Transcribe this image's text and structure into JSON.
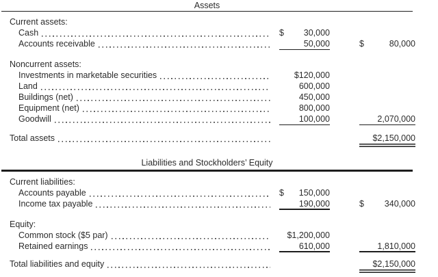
{
  "document": {
    "kind": "balance-sheet",
    "colors": {
      "background": "#ffffff",
      "text": "#2b2b2b",
      "rule": "#1d1d1d",
      "leader_dots": "#3f3f3f"
    },
    "sections": [
      {
        "title": "Assets",
        "rows": [
          {
            "label": "Current assets:",
            "indent": 0
          },
          {
            "label": "Cash",
            "indent": 1,
            "leader": true,
            "col1": {
              "dollar": "$",
              "value": "30,000"
            }
          },
          {
            "label": "Accounts receivable",
            "indent": 1,
            "leader": true,
            "col1": {
              "value": "50,000",
              "underline": "single"
            },
            "col2": {
              "dollar": "$",
              "value": "80,000"
            }
          },
          {
            "label": "Noncurrent assets:",
            "indent": 0,
            "gap": 14
          },
          {
            "label": "Investments in marketable securities",
            "indent": 1,
            "leader": true,
            "col1": {
              "value": "$120,000"
            }
          },
          {
            "label": "Land",
            "indent": 1,
            "leader": true,
            "col1": {
              "value": "600,000"
            }
          },
          {
            "label": "Buildings (net)",
            "indent": 1,
            "leader": true,
            "col1": {
              "value": "450,000"
            }
          },
          {
            "label": "Equipment (net)",
            "indent": 1,
            "leader": true,
            "col1": {
              "value": "800,000"
            }
          },
          {
            "label": "Goodwill",
            "indent": 1,
            "leader": true,
            "col1": {
              "value": "100,000",
              "underline": "single"
            },
            "col2": {
              "value": "2,070,000",
              "underline": "single"
            }
          },
          {
            "label": "Total assets",
            "indent": 0,
            "leader": true,
            "gap": 12,
            "col2": {
              "value": "$2,150,000",
              "underline": "double"
            }
          }
        ]
      },
      {
        "title": "Liabilities and Stockholders’ Equity",
        "rows": [
          {
            "label": "Current liabilities:",
            "indent": 0
          },
          {
            "label": "Accounts payable",
            "indent": 1,
            "leader": true,
            "col1": {
              "dollar": "$",
              "value": "150,000"
            }
          },
          {
            "label": "Income tax payable",
            "indent": 1,
            "leader": true,
            "col1": {
              "value": "190,000",
              "underline": "single"
            },
            "col2": {
              "dollar": "$",
              "value": "340,000"
            }
          },
          {
            "label": "Equity:",
            "indent": 0,
            "gap": 14
          },
          {
            "label": "Common stock ($5 par)",
            "indent": 1,
            "leader": true,
            "col1": {
              "value": "$1,200,000"
            }
          },
          {
            "label": "Retained earnings",
            "indent": 1,
            "leader": true,
            "col1": {
              "value": "610,000",
              "underline": "single"
            },
            "col2": {
              "value": "1,810,000",
              "underline": "single"
            }
          },
          {
            "label": "Total liabilities and equity",
            "indent": 0,
            "leader": true,
            "gap": 10,
            "col2": {
              "value": "$2,150,000",
              "underline": "double"
            }
          }
        ]
      }
    ]
  }
}
